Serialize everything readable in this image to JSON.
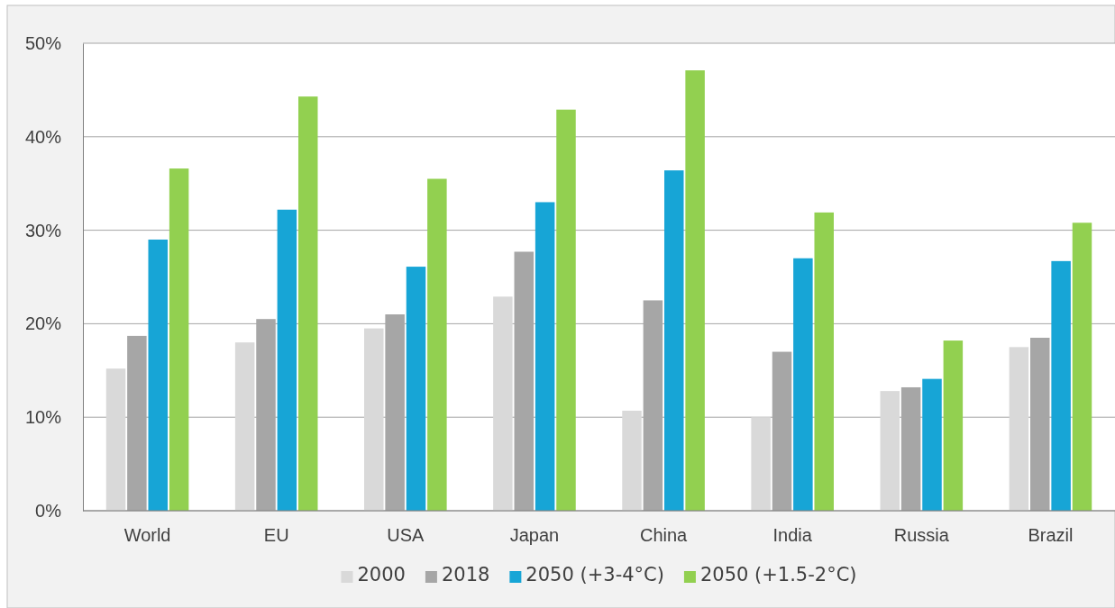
{
  "chart_data": {
    "type": "bar",
    "categories": [
      "World",
      "EU",
      "USA",
      "Japan",
      "China",
      "India",
      "Russia",
      "Brazil"
    ],
    "series": [
      {
        "name": "2000",
        "color": "#d9d9d9",
        "values": [
          15.2,
          18.0,
          19.5,
          22.9,
          10.7,
          10.0,
          12.8,
          17.5
        ]
      },
      {
        "name": "2018",
        "color": "#a6a6a6",
        "values": [
          18.7,
          20.5,
          21.0,
          27.7,
          22.5,
          17.0,
          13.2,
          18.5
        ]
      },
      {
        "name": "2050 (+3-4°C)",
        "color": "#17a5d6",
        "values": [
          29.0,
          32.2,
          26.1,
          33.0,
          36.4,
          27.0,
          14.1,
          26.7
        ]
      },
      {
        "name": "2050 (+1.5-2°C)",
        "color": "#92d050",
        "values": [
          36.6,
          44.3,
          35.5,
          42.9,
          47.1,
          31.9,
          18.2,
          30.8
        ]
      }
    ],
    "ylim": [
      0,
      50
    ],
    "yticks": [
      {
        "value": 0,
        "label": "0%"
      },
      {
        "value": 10,
        "label": "10%"
      },
      {
        "value": 20,
        "label": "20%"
      },
      {
        "value": 30,
        "label": "30%"
      },
      {
        "value": 40,
        "label": "40%"
      },
      {
        "value": 50,
        "label": "50%"
      }
    ],
    "grid": "y",
    "legend": "bottom"
  }
}
